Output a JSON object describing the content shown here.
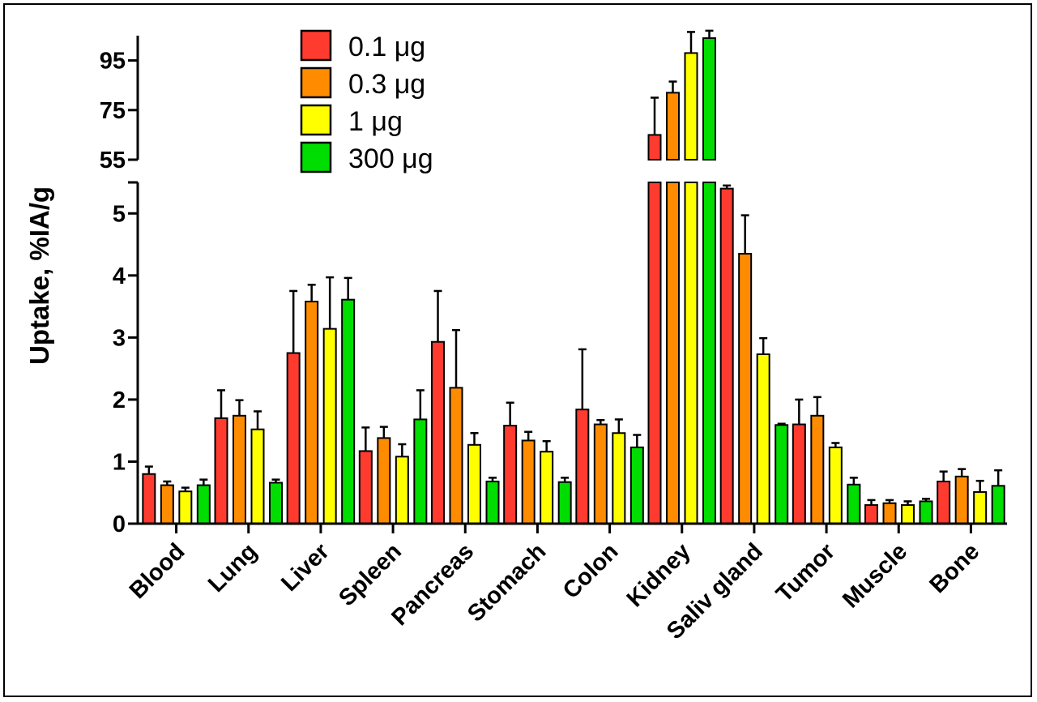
{
  "chart_data": {
    "type": "bar",
    "ylabel": "Uptake, %IA/g",
    "categories": [
      "Blood",
      "Lung",
      "Liver",
      "Spleen",
      "Pancreas",
      "Stomach",
      "Colon",
      "Kidney",
      "Saliv gland",
      "Tumor",
      "Muscle",
      "Bone"
    ],
    "series": [
      {
        "name": "0.1 μg",
        "color": "#ff3b30",
        "values": [
          0.8,
          1.7,
          2.75,
          1.17,
          2.93,
          1.58,
          1.84,
          65,
          5.4,
          1.6,
          0.3,
          0.68
        ],
        "errors": [
          0.12,
          0.45,
          1.0,
          0.38,
          0.82,
          0.37,
          0.97,
          15,
          0.05,
          0.4,
          0.08,
          0.16
        ]
      },
      {
        "name": "0.3 μg",
        "color": "#ff8c00",
        "values": [
          0.62,
          1.74,
          3.58,
          1.38,
          2.19,
          1.34,
          1.6,
          82,
          4.35,
          1.74,
          0.33,
          0.76
        ],
        "errors": [
          0.06,
          0.25,
          0.27,
          0.18,
          0.93,
          0.14,
          0.07,
          4.5,
          0.62,
          0.3,
          0.05,
          0.12
        ]
      },
      {
        "name": "1 μg",
        "color": "#ffff00",
        "values": [
          0.52,
          1.52,
          3.14,
          1.08,
          1.27,
          1.16,
          1.46,
          98,
          2.73,
          1.23,
          0.3,
          0.51
        ],
        "errors": [
          0.06,
          0.29,
          0.83,
          0.2,
          0.19,
          0.17,
          0.22,
          8.5,
          0.26,
          0.07,
          0.06,
          0.18
        ]
      },
      {
        "name": "300 μg",
        "color": "#00dd00",
        "values": [
          0.62,
          0.66,
          3.61,
          1.68,
          0.68,
          0.67,
          1.23,
          104,
          1.59,
          0.63,
          0.36,
          0.61
        ],
        "errors": [
          0.09,
          0.05,
          0.35,
          0.47,
          0.06,
          0.07,
          0.2,
          3,
          0.02,
          0.11,
          0.04,
          0.25
        ]
      }
    ],
    "y_axis_segments": [
      {
        "range": [
          0,
          5.5
        ],
        "ticks": [
          0,
          1,
          2,
          3,
          4,
          5
        ],
        "tick_labels": [
          "0",
          "1",
          "2",
          "3",
          "4",
          "5"
        ]
      },
      {
        "range": [
          55,
          105
        ],
        "ticks": [
          55,
          75,
          95
        ],
        "tick_labels": [
          "55",
          "75",
          "95"
        ]
      }
    ],
    "axis_break": true,
    "error_bars": "positive",
    "legend_position": "top-left",
    "grid": false
  }
}
